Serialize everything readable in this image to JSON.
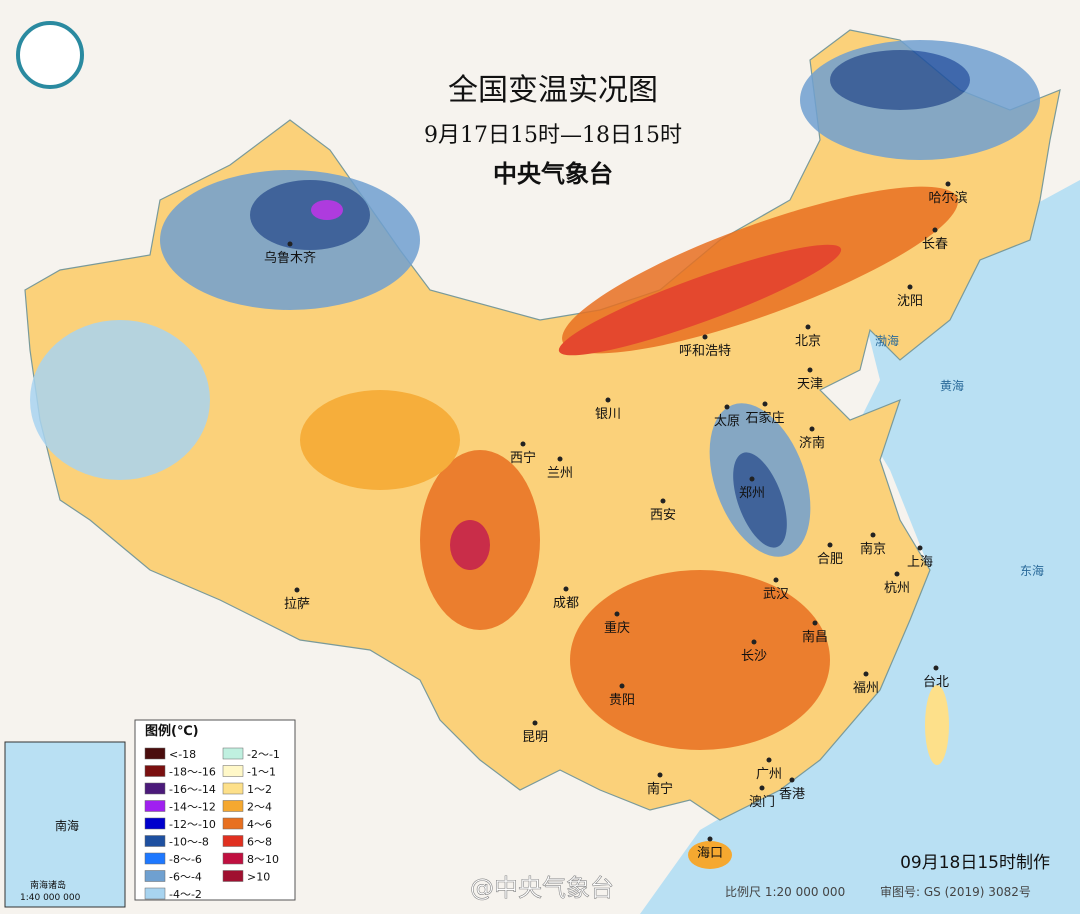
{
  "header": {
    "title": "全国变温实况图",
    "subtitle": "9月17日15时—18日15时",
    "org": "中央气象台"
  },
  "cities": [
    "乌鲁木齐",
    "哈尔滨",
    "长春",
    "沈阳",
    "呼和浩特",
    "北京",
    "天津",
    "石家庄",
    "太原",
    "济南",
    "银川",
    "西宁",
    "兰州",
    "郑州",
    "西安",
    "合肥",
    "南京",
    "上海",
    "杭州",
    "拉萨",
    "成都",
    "武汉",
    "重庆",
    "南昌",
    "长沙",
    "福州",
    "台北",
    "贵阳",
    "昆明",
    "广州",
    "南宁",
    "香港",
    "澳门",
    "海口"
  ],
  "seas": [
    "黄海",
    "东海",
    "渤海"
  ],
  "legend": {
    "title": "图例(℃)",
    "items": [
      {
        "label": "<-18",
        "color": "#4a0d0d"
      },
      {
        "label": "-18～-16",
        "color": "#7a1010"
      },
      {
        "label": "-16～-14",
        "color": "#4b1a7a"
      },
      {
        "label": "-14～-12",
        "color": "#a020f0"
      },
      {
        "label": "-12～-10",
        "color": "#0000cd"
      },
      {
        "label": "-10～-8",
        "color": "#1e50a0"
      },
      {
        "label": "-8～-6",
        "color": "#1e78ff"
      },
      {
        "label": "-6～-4",
        "color": "#6fa0d0"
      },
      {
        "label": "-4～-2",
        "color": "#a8d4f0"
      },
      {
        "label": "-2～-1",
        "color": "#c0f0e0"
      },
      {
        "label": "-1～1",
        "color": "#fff8c8"
      },
      {
        "label": "1～2",
        "color": "#fde08a"
      },
      {
        "label": "2～4",
        "color": "#f5a830"
      },
      {
        "label": "4～6",
        "color": "#e87020"
      },
      {
        "label": "6～8",
        "color": "#e03020"
      },
      {
        "label": "8～10",
        "color": "#c01040"
      },
      {
        "label": ">10",
        "color": "#a01030"
      }
    ]
  },
  "inset": {
    "title": "南海诸岛",
    "scale": "1:40 000 000",
    "sea": "南海"
  },
  "footer": {
    "made": "09月18日15时制作",
    "scale": "比例尺 1:20 000 000",
    "review": "审图号: GS (2019) 3082号",
    "watermark": "@中央气象台"
  }
}
